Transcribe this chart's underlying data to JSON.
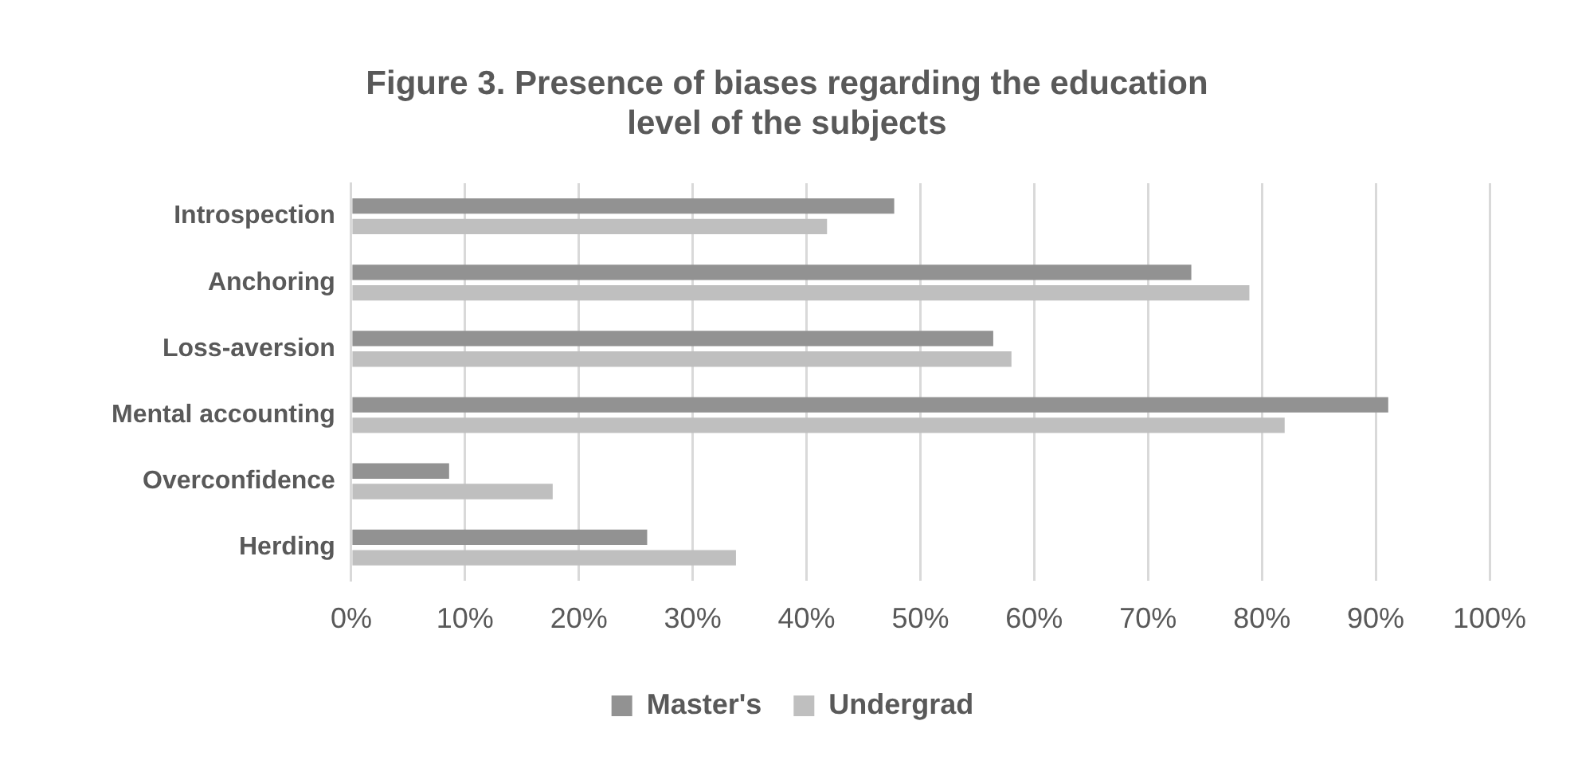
{
  "chart_data": {
    "type": "bar",
    "orientation": "horizontal",
    "title": "Figure 3. Presence of biases regarding the education level of the subjects",
    "categories": [
      "Introspection",
      "Anchoring",
      "Loss-aversion",
      "Mental accounting",
      "Overconfidence",
      "Herding"
    ],
    "series": [
      {
        "name": "Master's",
        "color": "#929292",
        "values": [
          47.7,
          73.8,
          56.4,
          91.1,
          8.6,
          26.0
        ]
      },
      {
        "name": "Undergrad",
        "color": "#bfbfbf",
        "values": [
          41.8,
          78.9,
          58.0,
          82.0,
          17.7,
          33.8
        ]
      }
    ],
    "xlim": [
      0,
      100
    ],
    "xticks": [
      {
        "value": 0,
        "label": "0%"
      },
      {
        "value": 10,
        "label": "10%"
      },
      {
        "value": 20,
        "label": "20%"
      },
      {
        "value": 30,
        "label": "30%"
      },
      {
        "value": 40,
        "label": "40%"
      },
      {
        "value": 50,
        "label": "50%"
      },
      {
        "value": 60,
        "label": "60%"
      },
      {
        "value": 70,
        "label": "70%"
      },
      {
        "value": 80,
        "label": "80%"
      },
      {
        "value": 90,
        "label": "90%"
      },
      {
        "value": 100,
        "label": "100%"
      }
    ],
    "grid": "x",
    "legend": "bottom"
  }
}
